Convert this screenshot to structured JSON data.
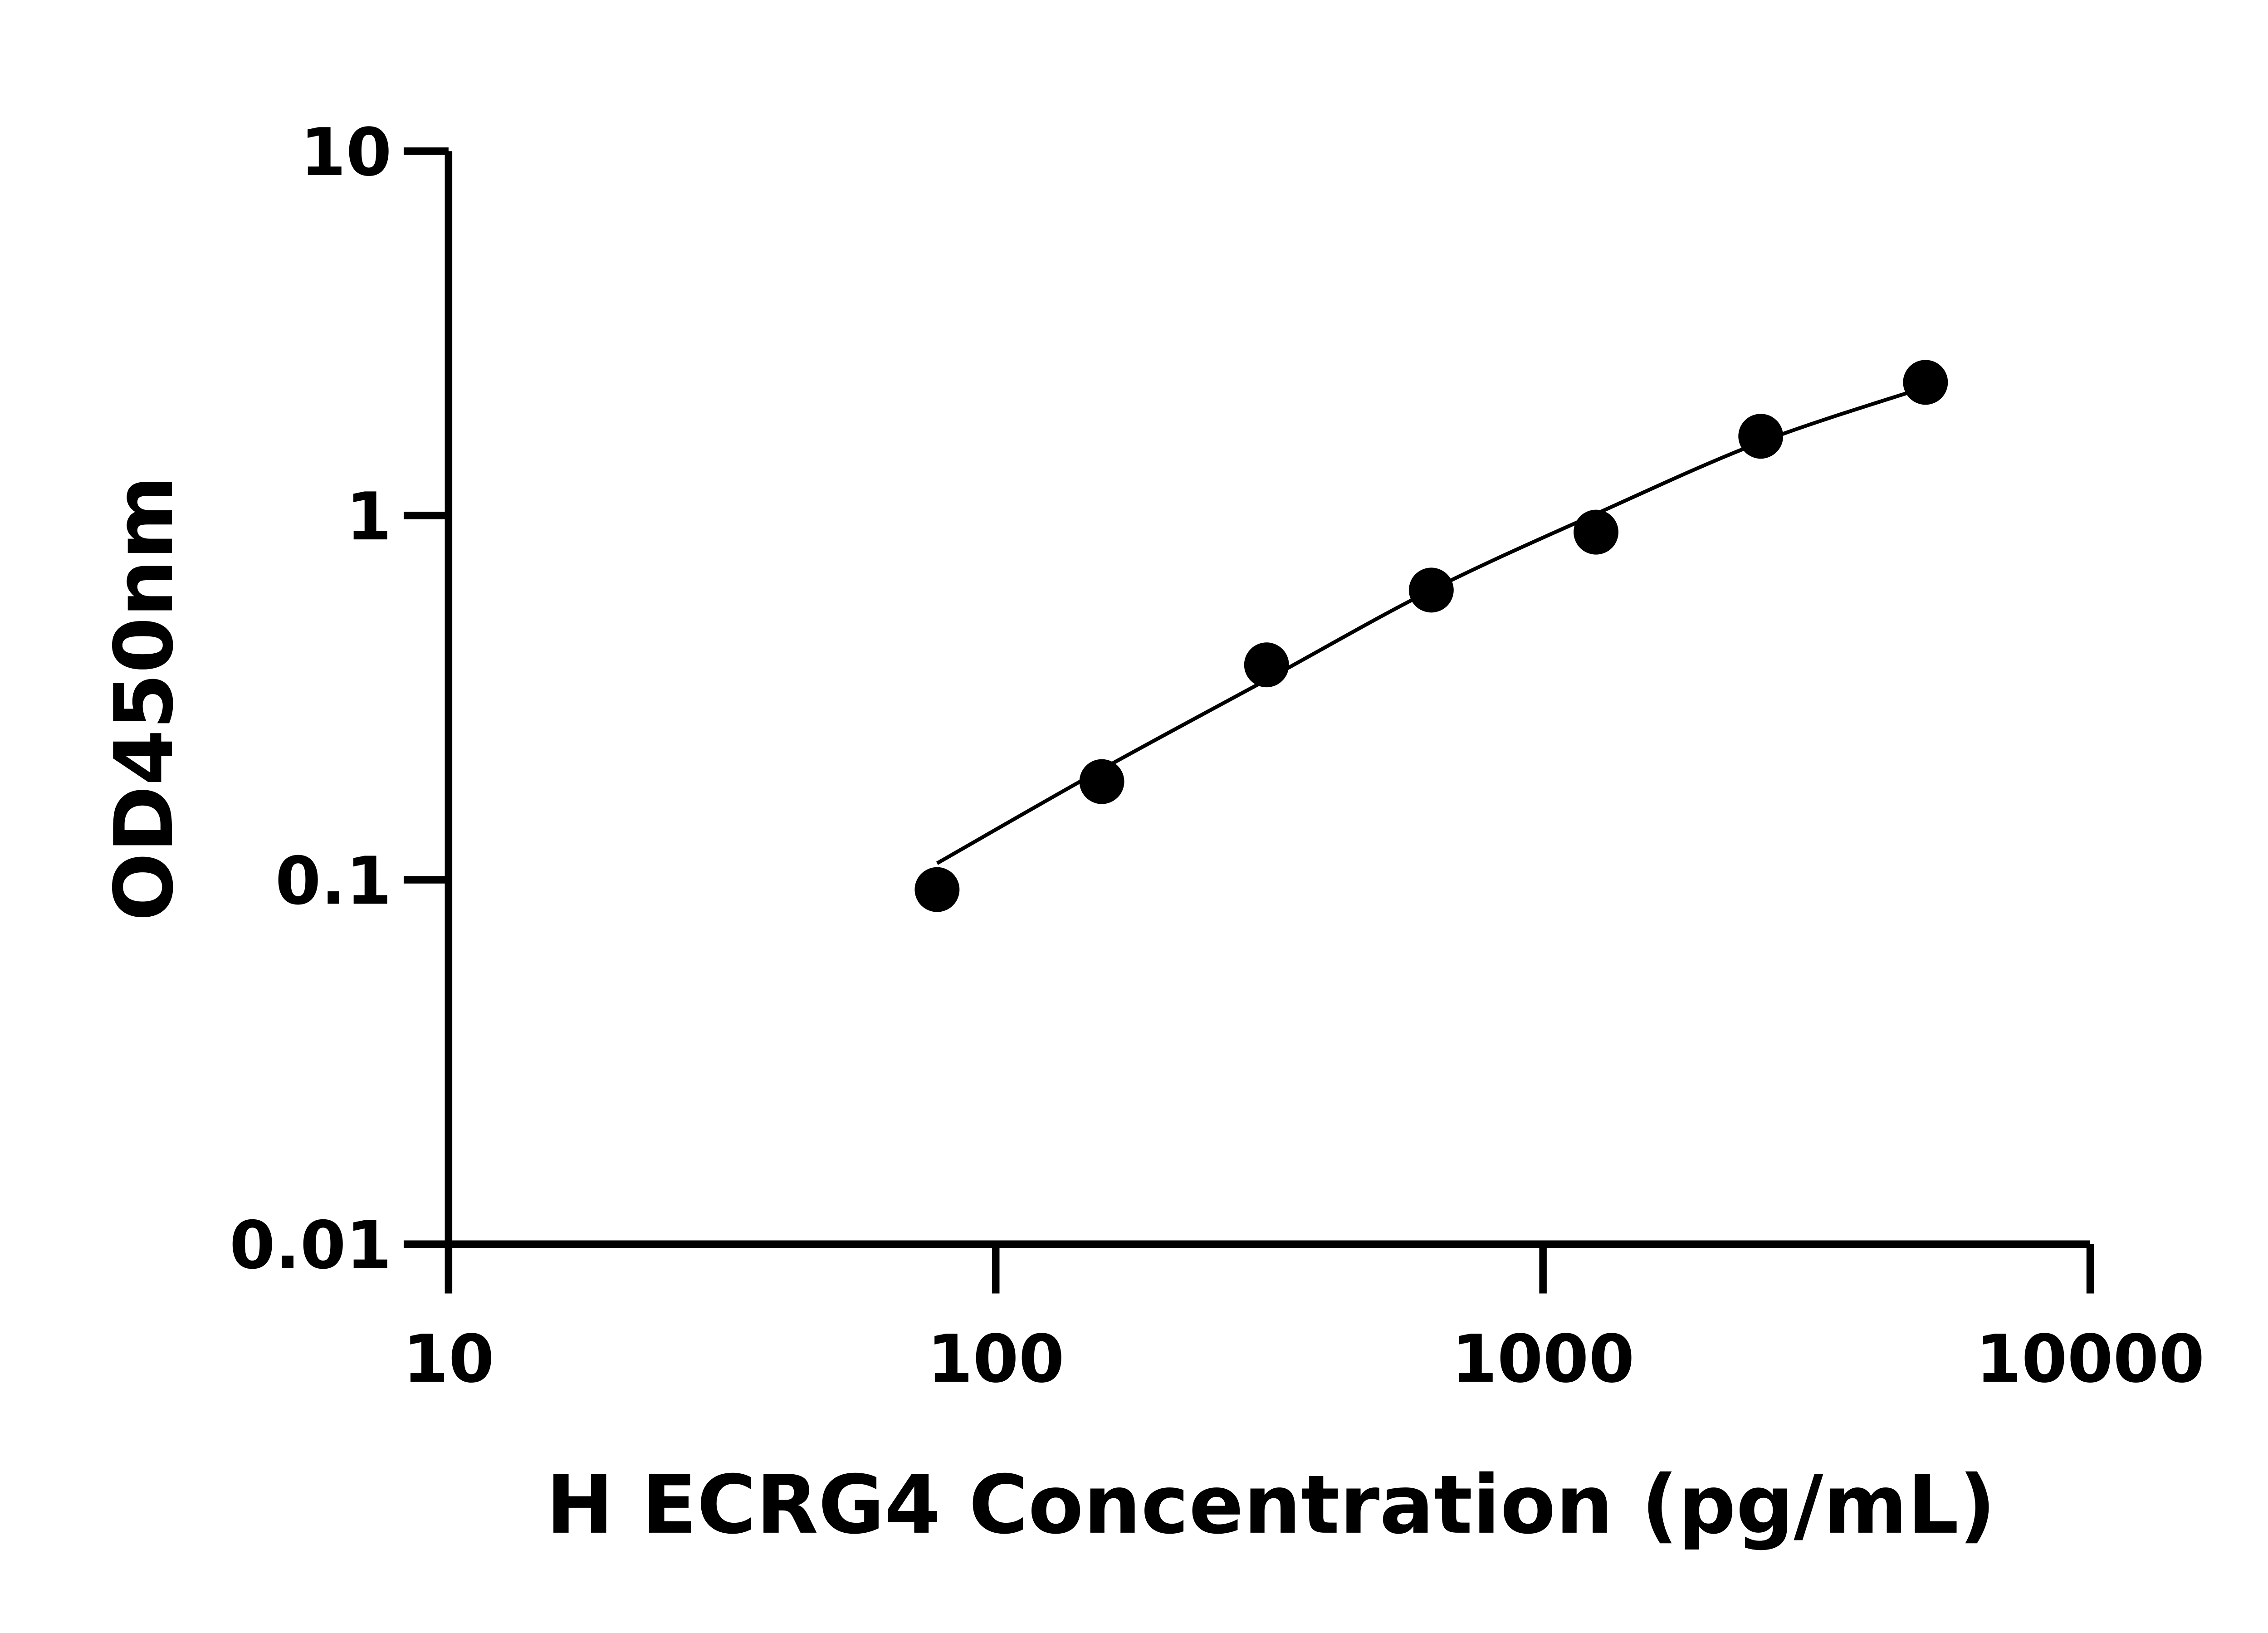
{
  "chart_data": {
    "type": "scatter",
    "title": "",
    "xlabel": "H ECRG4 Concentration (pg/mL)",
    "ylabel": "OD450nm",
    "x_scale": "log",
    "y_scale": "log",
    "xlim": [
      10,
      10000
    ],
    "ylim": [
      0.01,
      10
    ],
    "x_ticks": [
      "10",
      "100",
      "1000",
      "10000"
    ],
    "y_ticks": [
      "0.01",
      "0.1",
      "1",
      "10"
    ],
    "grid": false,
    "legend": "none",
    "points": {
      "x": [
        78.125,
        156.25,
        312.5,
        625,
        1250,
        2500,
        5000
      ],
      "y": [
        0.094,
        0.186,
        0.389,
        0.624,
        0.9,
        1.65,
        2.32
      ]
    },
    "fit_curve": {
      "x": [
        78.125,
        156.25,
        312.5,
        625,
        1250,
        2500,
        5000
      ],
      "y": [
        0.111,
        0.201,
        0.354,
        0.624,
        1.01,
        1.59,
        2.25
      ]
    },
    "colors": {
      "marker": "#000000",
      "line": "#000000",
      "axis": "#000000"
    }
  }
}
